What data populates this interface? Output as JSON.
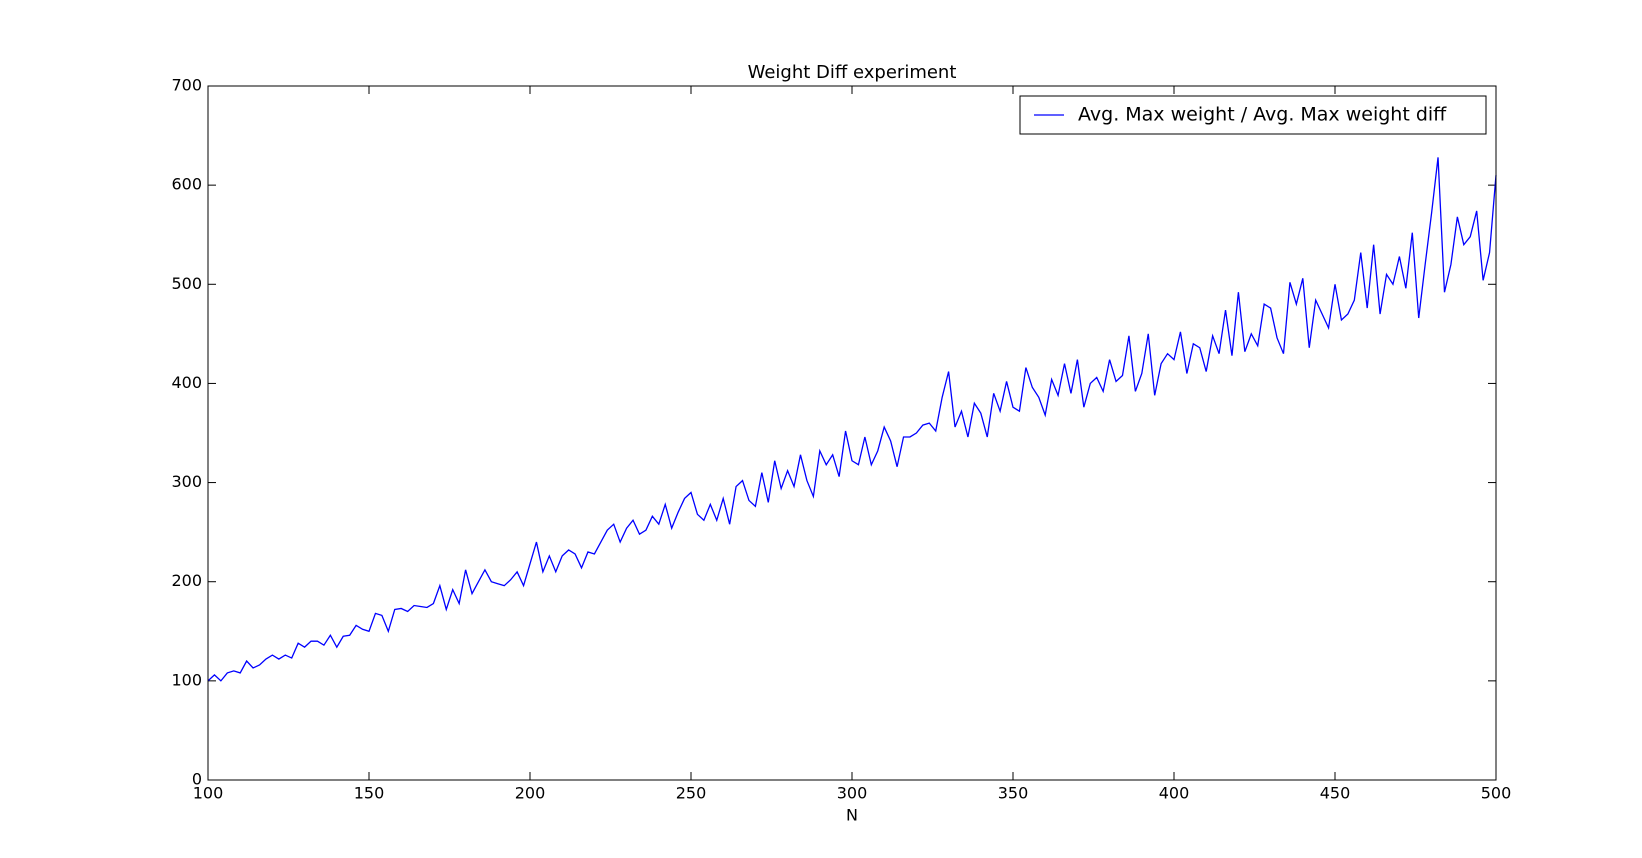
{
  "chart_data": {
    "type": "line",
    "title": "Weight Diff experiment",
    "x_label": "N",
    "x": [
      100,
      102,
      104,
      106,
      108,
      110,
      112,
      114,
      116,
      118,
      120,
      122,
      124,
      126,
      128,
      130,
      132,
      134,
      136,
      138,
      140,
      142,
      144,
      146,
      148,
      150,
      152,
      154,
      156,
      158,
      160,
      162,
      164,
      166,
      168,
      170,
      172,
      174,
      176,
      178,
      180,
      182,
      184,
      186,
      188,
      190,
      192,
      194,
      196,
      198,
      200,
      202,
      204,
      206,
      208,
      210,
      212,
      214,
      216,
      218,
      220,
      222,
      224,
      226,
      228,
      230,
      232,
      234,
      236,
      238,
      240,
      242,
      244,
      246,
      248,
      250,
      252,
      254,
      256,
      258,
      260,
      262,
      264,
      266,
      268,
      270,
      272,
      274,
      276,
      278,
      280,
      282,
      284,
      286,
      288,
      290,
      292,
      294,
      296,
      298,
      300,
      302,
      304,
      306,
      308,
      310,
      312,
      314,
      316,
      318,
      320,
      322,
      324,
      326,
      328,
      330,
      332,
      334,
      336,
      338,
      340,
      342,
      344,
      346,
      348,
      350,
      352,
      354,
      356,
      358,
      360,
      362,
      364,
      366,
      368,
      370,
      372,
      374,
      376,
      378,
      380,
      382,
      384,
      386,
      388,
      390,
      392,
      394,
      396,
      398,
      400,
      402,
      404,
      406,
      408,
      410,
      412,
      414,
      416,
      418,
      420,
      422,
      424,
      426,
      428,
      430,
      432,
      434,
      436,
      438,
      440,
      442,
      444,
      446,
      448,
      450,
      452,
      454,
      456,
      458,
      460,
      462,
      464,
      466,
      468,
      470,
      472,
      474,
      476,
      478,
      480,
      482,
      484,
      486,
      488,
      490,
      492,
      494,
      496,
      498,
      500
    ],
    "series": [
      {
        "name": "Avg. Max weight / Avg. Max weight diff",
        "color": "#0000ff",
        "values": [
          100,
          106,
          100,
          108,
          110,
          108,
          120,
          113,
          116,
          122,
          126,
          122,
          126,
          123,
          138,
          134,
          140,
          140,
          136,
          146,
          134,
          145,
          146,
          156,
          152,
          150,
          168,
          166,
          150,
          172,
          173,
          170,
          176,
          175,
          174,
          178,
          196,
          172,
          192,
          178,
          212,
          188,
          200,
          212,
          200,
          198,
          196,
          202,
          210,
          196,
          218,
          240,
          210,
          226,
          210,
          226,
          232,
          228,
          214,
          230,
          228,
          240,
          252,
          258,
          240,
          254,
          262,
          248,
          252,
          266,
          258,
          278,
          254,
          270,
          284,
          290,
          268,
          262,
          278,
          262,
          284,
          258,
          296,
          302,
          282,
          276,
          310,
          280,
          322,
          294,
          312,
          296,
          328,
          302,
          286,
          332,
          318,
          328,
          306,
          352,
          322,
          318,
          346,
          318,
          332,
          356,
          342,
          316,
          346,
          346,
          350,
          358,
          360,
          352,
          386,
          412,
          356,
          372,
          346,
          380,
          370,
          346,
          390,
          372,
          402,
          376,
          372,
          416,
          396,
          386,
          368,
          404,
          388,
          420,
          390,
          424,
          376,
          400,
          406,
          392,
          424,
          402,
          408,
          448,
          392,
          410,
          450,
          388,
          420,
          430,
          424,
          452,
          410,
          440,
          436,
          412,
          448,
          430,
          474,
          428,
          492,
          432,
          450,
          438,
          480,
          476,
          446,
          430,
          502,
          480,
          506,
          436,
          484,
          470,
          456,
          500,
          464,
          470,
          484,
          532,
          476,
          540,
          470,
          510,
          500,
          528,
          496,
          552,
          466,
          520,
          572,
          628,
          492,
          520,
          568,
          540,
          548,
          574,
          504,
          532,
          610
        ]
      }
    ],
    "xlim": [
      100,
      500
    ],
    "ylim": [
      0,
      700
    ],
    "xticks": [
      100,
      150,
      200,
      250,
      300,
      350,
      400,
      450,
      500
    ],
    "yticks": [
      0,
      100,
      200,
      300,
      400,
      500,
      600,
      700
    ],
    "legend": "upper right"
  }
}
